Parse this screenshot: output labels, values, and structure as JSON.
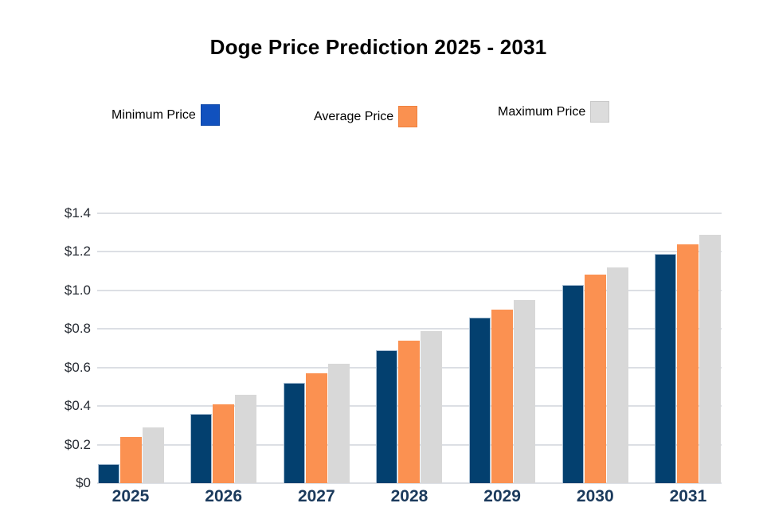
{
  "chart_data": {
    "type": "bar",
    "title": "Doge Price Prediction 2025 - 2031",
    "categories": [
      "2025",
      "2026",
      "2027",
      "2028",
      "2029",
      "2030",
      "2031"
    ],
    "series": [
      {
        "name": "Minimum Price",
        "color": "#03406F",
        "values": [
          0.1,
          0.36,
          0.52,
          0.69,
          0.86,
          1.03,
          1.19
        ]
      },
      {
        "name": "Average Price",
        "color": "#FB9151",
        "values": [
          0.24,
          0.41,
          0.57,
          0.74,
          0.9,
          1.08,
          1.24
        ]
      },
      {
        "name": "Maximum Price",
        "color": "#D8D8D8",
        "values": [
          0.29,
          0.46,
          0.62,
          0.79,
          0.95,
          1.12,
          1.29
        ]
      }
    ],
    "xlabel": "",
    "ylabel": "",
    "y_axis": {
      "min": 0,
      "max": 1.4,
      "tick_step": 0.2,
      "tick_labels": [
        "$0",
        "$0.2",
        "$0.4",
        "$0.6",
        "$0.8",
        "$1.0",
        "$1.2",
        "$1.4"
      ]
    },
    "grid": true,
    "legend_position": "top"
  },
  "legend": {
    "items": [
      {
        "label": "Minimum Price",
        "swatch_color": "#1151BE"
      },
      {
        "label": "Average Price",
        "swatch_color": "#FA9150"
      },
      {
        "label": "Maximum Price",
        "swatch_color": "#DCDCDC"
      }
    ]
  },
  "colors": {
    "background": "#FFFFFF",
    "gridline": "#DCDFE4",
    "title_text": "#000000",
    "x_label_text": "#1B3A5C",
    "y_tick_text": "#262B33",
    "min_bar": "#03406F",
    "avg_bar": "#FB9151",
    "max_bar": "#D8D8D8"
  }
}
